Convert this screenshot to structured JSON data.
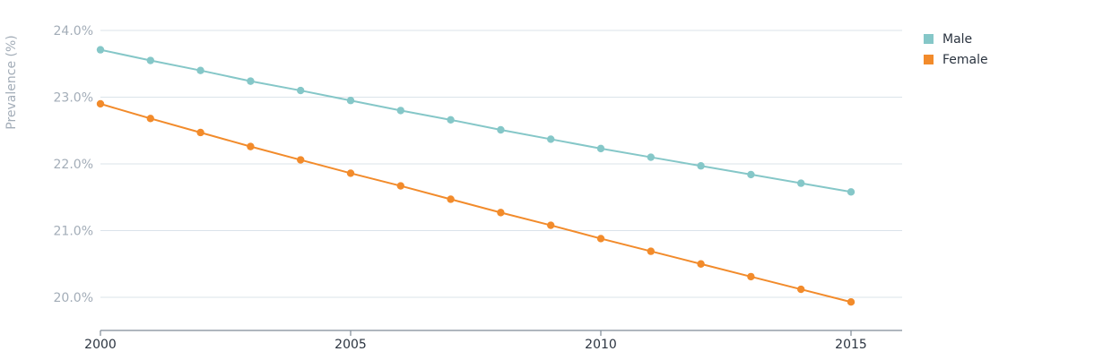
{
  "chart_data": {
    "type": "line",
    "title": "",
    "xlabel": "",
    "ylabel": "Prevalence (%)",
    "x": [
      2000,
      2001,
      2002,
      2003,
      2004,
      2005,
      2006,
      2007,
      2008,
      2009,
      2010,
      2011,
      2012,
      2013,
      2014,
      2015
    ],
    "xlim": [
      2000,
      2016
    ],
    "ylim": [
      19.5,
      24.0
    ],
    "x_ticks": [
      2000,
      2005,
      2010,
      2015
    ],
    "x_tick_labels": [
      "2000",
      "2005",
      "2010",
      "2015"
    ],
    "y_ticks": [
      20.0,
      21.0,
      22.0,
      23.0,
      24.0
    ],
    "y_tick_labels": [
      "20.0%",
      "21.0%",
      "22.0%",
      "23.0%",
      "24.0%"
    ],
    "grid": true,
    "legend": {
      "placement": "top-right"
    },
    "series": [
      {
        "name": "Male",
        "color": "#85c7c8",
        "values": [
          23.71,
          23.55,
          23.4,
          23.24,
          23.1,
          22.95,
          22.8,
          22.66,
          22.51,
          22.37,
          22.23,
          22.1,
          21.97,
          21.84,
          21.71,
          21.58
        ]
      },
      {
        "name": "Female",
        "color": "#f28b2b",
        "values": [
          22.9,
          22.68,
          22.47,
          22.26,
          22.06,
          21.86,
          21.67,
          21.47,
          21.27,
          21.08,
          20.88,
          20.69,
          20.5,
          20.31,
          20.12,
          19.93
        ]
      }
    ]
  }
}
